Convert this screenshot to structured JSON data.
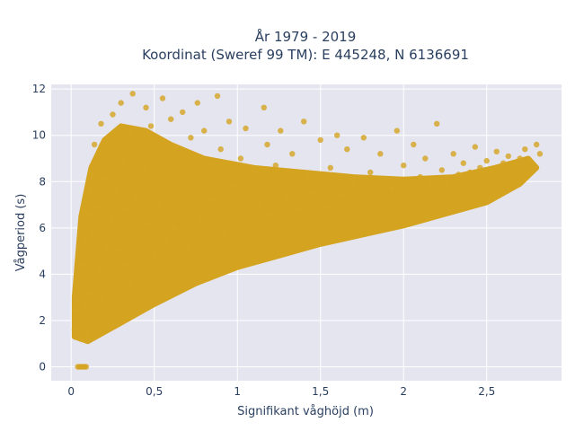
{
  "chart_data": {
    "type": "scatter",
    "title_lines": [
      "År 1979 - 2019",
      "Koordinat (Sweref 99 TM): E 445248, N 6136691"
    ],
    "xlabel": "Signifikant våghöjd (m)",
    "ylabel": "Vågperiod (s)",
    "xlim": [
      -0.12,
      2.95
    ],
    "ylim": [
      -0.6,
      12.2
    ],
    "x_ticks": [
      0,
      0.5,
      1,
      1.5,
      2,
      2.5
    ],
    "x_tick_labels": [
      "0",
      "0,5",
      "1",
      "1,5",
      "2",
      "2,5"
    ],
    "y_ticks": [
      0,
      2,
      4,
      6,
      8,
      10,
      12
    ],
    "y_tick_labels": [
      "0",
      "2",
      "4",
      "6",
      "8",
      "10",
      "12"
    ],
    "grid": true,
    "colors": {
      "marker": "#d4a421",
      "plot_bg": "#e5e5f0",
      "grid": "#ffffff"
    },
    "series": [
      {
        "points": [
          [
            0.02,
            1.6
          ],
          [
            0.03,
            2.4
          ],
          [
            0.05,
            3.5
          ],
          [
            0.06,
            1.2
          ],
          [
            0.07,
            4.4
          ],
          [
            0.08,
            2.6
          ],
          [
            0.09,
            5.4
          ],
          [
            0.1,
            6.6
          ],
          [
            0.1,
            1.4
          ],
          [
            0.11,
            7.6
          ],
          [
            0.12,
            3.2
          ],
          [
            0.12,
            8.4
          ],
          [
            0.13,
            5.8
          ],
          [
            0.14,
            9.6
          ],
          [
            0.15,
            2.2
          ],
          [
            0.16,
            6.9
          ],
          [
            0.17,
            4.2
          ],
          [
            0.18,
            10.5
          ],
          [
            0.19,
            3.0
          ],
          [
            0.2,
            8.1
          ],
          [
            0.21,
            5.2
          ],
          [
            0.22,
            2.6
          ],
          [
            0.23,
            9.3
          ],
          [
            0.24,
            6.4
          ],
          [
            0.25,
            10.9
          ],
          [
            0.26,
            3.8
          ],
          [
            0.27,
            7.7
          ],
          [
            0.28,
            5.0
          ],
          [
            0.3,
            11.4
          ],
          [
            0.31,
            8.9
          ],
          [
            0.32,
            4.4
          ],
          [
            0.33,
            6.8
          ],
          [
            0.35,
            10.1
          ],
          [
            0.36,
            3.6
          ],
          [
            0.37,
            11.8
          ],
          [
            0.38,
            7.3
          ],
          [
            0.4,
            5.6
          ],
          [
            0.41,
            9.8
          ],
          [
            0.43,
            4.0
          ],
          [
            0.44,
            8.5
          ],
          [
            0.45,
            11.2
          ],
          [
            0.47,
            6.2
          ],
          [
            0.48,
            10.4
          ],
          [
            0.5,
            4.8
          ],
          [
            0.52,
            9.1
          ],
          [
            0.53,
            7.0
          ],
          [
            0.55,
            11.6
          ],
          [
            0.57,
            5.4
          ],
          [
            0.58,
            8.3
          ],
          [
            0.6,
            10.7
          ],
          [
            0.62,
            6.0
          ],
          [
            0.63,
            9.5
          ],
          [
            0.65,
            4.6
          ],
          [
            0.67,
            11.0
          ],
          [
            0.68,
            7.6
          ],
          [
            0.7,
            5.2
          ],
          [
            0.72,
            9.9
          ],
          [
            0.74,
            8.0
          ],
          [
            0.76,
            11.4
          ],
          [
            0.78,
            6.4
          ],
          [
            0.8,
            10.2
          ],
          [
            0.82,
            5.0
          ],
          [
            0.84,
            8.8
          ],
          [
            0.86,
            7.2
          ],
          [
            0.88,
            11.7
          ],
          [
            0.9,
            9.4
          ],
          [
            0.92,
            5.8
          ],
          [
            0.95,
            10.6
          ],
          [
            0.98,
            7.8
          ],
          [
            1.0,
            6.3
          ],
          [
            1.02,
            9.0
          ],
          [
            1.05,
            10.3
          ],
          [
            1.08,
            5.6
          ],
          [
            1.1,
            8.4
          ],
          [
            1.13,
            7.0
          ],
          [
            1.16,
            11.2
          ],
          [
            1.18,
            9.6
          ],
          [
            1.2,
            6.6
          ],
          [
            1.23,
            8.7
          ],
          [
            1.26,
            10.2
          ],
          [
            1.3,
            7.3
          ],
          [
            1.33,
            9.2
          ],
          [
            1.36,
            6.8
          ],
          [
            1.4,
            10.6
          ],
          [
            1.43,
            8.2
          ],
          [
            1.46,
            7.5
          ],
          [
            1.5,
            9.8
          ],
          [
            1.53,
            6.9
          ],
          [
            1.56,
            8.6
          ],
          [
            1.6,
            10.0
          ],
          [
            1.63,
            7.4
          ],
          [
            1.66,
            9.4
          ],
          [
            1.7,
            8.0
          ],
          [
            1.73,
            7.1
          ],
          [
            1.76,
            9.9
          ],
          [
            1.8,
            8.4
          ],
          [
            1.83,
            7.5
          ],
          [
            1.86,
            9.2
          ],
          [
            1.9,
            8.1
          ],
          [
            1.93,
            7.7
          ],
          [
            1.96,
            10.2
          ],
          [
            2.0,
            8.7
          ],
          [
            2.03,
            7.8
          ],
          [
            2.06,
            9.6
          ],
          [
            2.1,
            8.2
          ],
          [
            2.13,
            9.0
          ],
          [
            2.16,
            7.9
          ],
          [
            2.2,
            10.5
          ],
          [
            2.23,
            8.5
          ],
          [
            2.26,
            8.0
          ],
          [
            2.3,
            9.2
          ],
          [
            2.33,
            8.3
          ],
          [
            2.36,
            8.8
          ],
          [
            2.4,
            8.4
          ],
          [
            2.43,
            9.5
          ],
          [
            2.46,
            8.6
          ],
          [
            2.5,
            8.9
          ],
          [
            2.53,
            8.5
          ],
          [
            2.56,
            9.3
          ],
          [
            2.6,
            8.8
          ],
          [
            2.63,
            9.1
          ],
          [
            2.66,
            8.7
          ],
          [
            2.7,
            9.0
          ],
          [
            2.73,
            9.4
          ],
          [
            2.76,
            8.9
          ],
          [
            2.8,
            9.6
          ],
          [
            2.82,
            9.2
          ],
          [
            0.04,
            0
          ],
          [
            0.05,
            0
          ],
          [
            0.06,
            0
          ],
          [
            0.07,
            0
          ],
          [
            0.08,
            0
          ],
          [
            0.09,
            0
          ]
        ]
      }
    ]
  }
}
